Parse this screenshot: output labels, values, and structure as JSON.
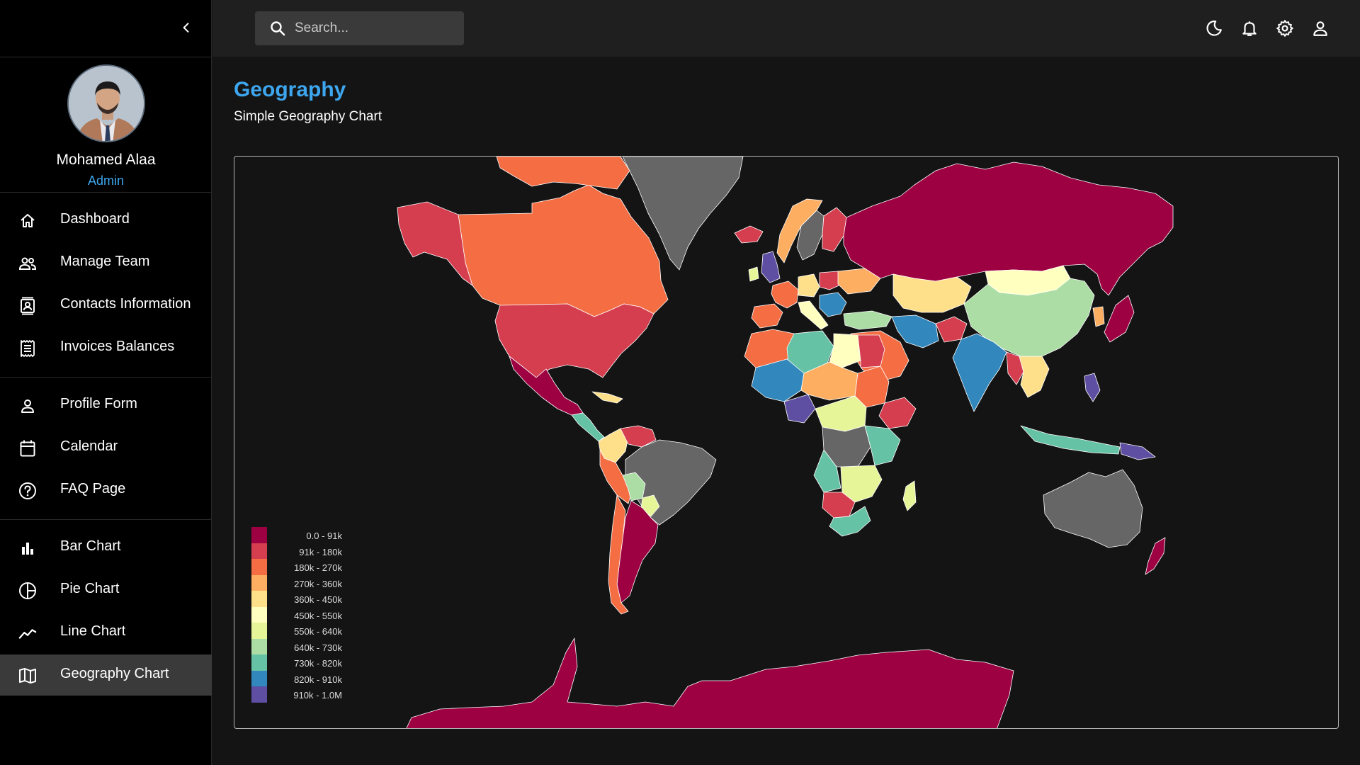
{
  "sidebar": {
    "user": {
      "name": "Mohamed Alaa",
      "role": "Admin"
    },
    "items": [
      {
        "label": "Dashboard",
        "icon": "home-icon"
      },
      {
        "label": "Manage Team",
        "icon": "people-icon"
      },
      {
        "label": "Contacts Information",
        "icon": "contacts-icon"
      },
      {
        "label": "Invoices Balances",
        "icon": "receipt-icon"
      },
      {
        "label": "Profile Form",
        "icon": "person-icon"
      },
      {
        "label": "Calendar",
        "icon": "calendar-icon"
      },
      {
        "label": "FAQ Page",
        "icon": "help-icon"
      },
      {
        "label": "Bar Chart",
        "icon": "bar-chart-icon"
      },
      {
        "label": "Pie Chart",
        "icon": "pie-chart-icon"
      },
      {
        "label": "Line Chart",
        "icon": "line-chart-icon"
      },
      {
        "label": "Geography Chart",
        "icon": "map-icon"
      }
    ],
    "active": "Geography Chart"
  },
  "topbar": {
    "search": {
      "placeholder": "Search...",
      "value": ""
    },
    "icons": [
      "dark-mode-icon",
      "notifications-icon",
      "settings-icon",
      "account-icon"
    ]
  },
  "header": {
    "title": "Geography",
    "subtitle": "Simple Geography Chart"
  },
  "chart_data": {
    "type": "choropleth",
    "legend": {
      "placement": "bottom-left",
      "bins": [
        {
          "label": "0.0 - 91k",
          "color": "#9e0142"
        },
        {
          "label": "91k - 180k",
          "color": "#d53e4f"
        },
        {
          "label": "180k - 270k",
          "color": "#f46d43"
        },
        {
          "label": "270k - 360k",
          "color": "#fdae61"
        },
        {
          "label": "360k - 450k",
          "color": "#fee08b"
        },
        {
          "label": "450k - 550k",
          "color": "#ffffbf"
        },
        {
          "label": "550k - 640k",
          "color": "#e6f598"
        },
        {
          "label": "640k - 730k",
          "color": "#abdda4"
        },
        {
          "label": "730k - 820k",
          "color": "#66c2a5"
        },
        {
          "label": "820k - 910k",
          "color": "#3288bd"
        },
        {
          "label": "910k - 1.0M",
          "color": "#5e4fa2"
        }
      ]
    },
    "no_data_color": "#666666",
    "border_color": "#ffffff"
  },
  "colors": {
    "accent": "#3da6ee",
    "sidebar_bg": "#000000",
    "topbar_bg": "#1f1f1f",
    "active_item_bg": "#3a3a3a"
  }
}
